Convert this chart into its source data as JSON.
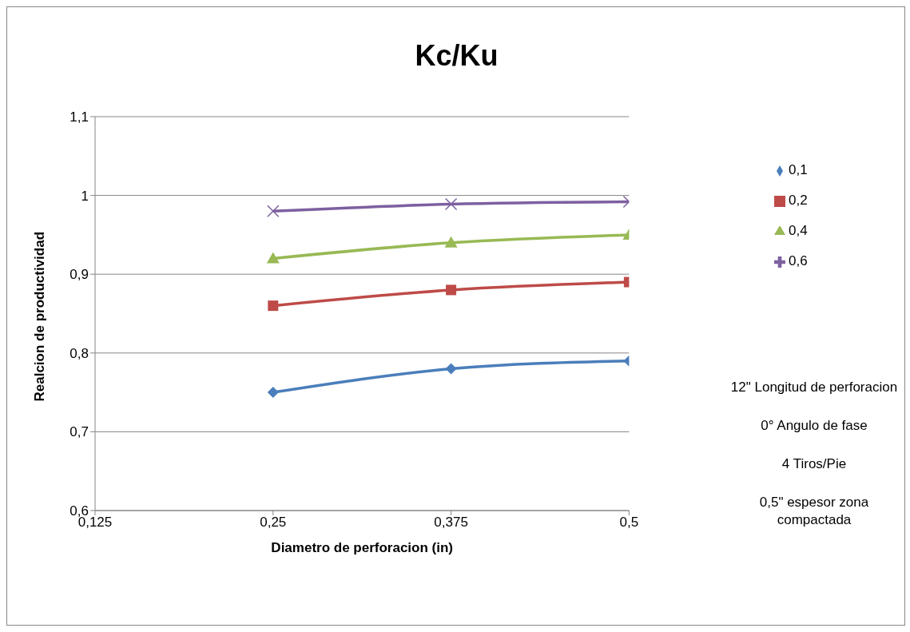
{
  "chart_data": {
    "type": "line",
    "title": "Kc/Ku",
    "xlabel": "Diametro de perforacion (in)",
    "ylabel": "Realcion de productividad",
    "x": [
      0.25,
      0.375,
      0.5
    ],
    "series": [
      {
        "name": "0,1",
        "color": "#4a7ebb",
        "marker": "diamond",
        "values": [
          0.75,
          0.78,
          0.79
        ]
      },
      {
        "name": "0,2",
        "color": "#be4b48",
        "marker": "square",
        "values": [
          0.86,
          0.88,
          0.89
        ]
      },
      {
        "name": "0,4",
        "color": "#98b954",
        "marker": "triangle",
        "values": [
          0.92,
          0.94,
          0.95
        ]
      },
      {
        "name": "0,6",
        "color": "#7d60a0",
        "marker": "cross",
        "values": [
          0.98,
          0.989,
          0.992
        ]
      }
    ],
    "xlim": [
      0.125,
      0.5
    ],
    "xticks": [
      {
        "value": 0.125,
        "label": "0,125"
      },
      {
        "value": 0.25,
        "label": "0,25"
      },
      {
        "value": 0.375,
        "label": "0,375"
      },
      {
        "value": 0.5,
        "label": "0,5"
      }
    ],
    "ylim": [
      0.6,
      1.1
    ],
    "yticks": [
      {
        "value": 0.6,
        "label": "0,6"
      },
      {
        "value": 0.7,
        "label": "0,7"
      },
      {
        "value": 0.8,
        "label": "0,8"
      },
      {
        "value": 0.9,
        "label": "0,9"
      },
      {
        "value": 1,
        "label": "1"
      },
      {
        "value": 1.1,
        "label": "1,1"
      }
    ],
    "grid": "y",
    "legend": "right",
    "line_style": "solid",
    "annotations": [
      "12\" Longitud de perforacion",
      "0° Angulo de fase",
      "4 Tiros/Pie",
      "0,5\" espesor zona compactada"
    ]
  }
}
